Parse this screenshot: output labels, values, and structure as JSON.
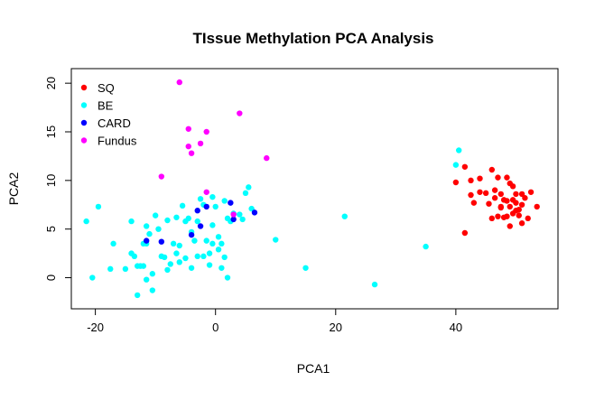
{
  "chart_data": {
    "type": "scatter",
    "title": "TIssue Methylation PCA Analysis",
    "xlabel": "PCA1",
    "ylabel": "PCA2",
    "xlim": [
      -24,
      57
    ],
    "ylim": [
      -3.2,
      21.5
    ],
    "x_ticks": [
      -20,
      0,
      20,
      40
    ],
    "y_ticks": [
      0,
      5,
      10,
      15,
      20
    ],
    "grid": false,
    "legend_position": "top-left",
    "series": [
      {
        "name": "SQ",
        "color": "#ff0000",
        "points": [
          [
            40,
            9.8
          ],
          [
            41.5,
            11.4
          ],
          [
            42.5,
            10
          ],
          [
            44,
            10.2
          ],
          [
            45,
            8.7
          ],
          [
            46,
            11.1
          ],
          [
            47,
            10.3
          ],
          [
            48.5,
            10.3
          ],
          [
            49,
            9.7
          ],
          [
            49.5,
            9.4
          ],
          [
            50,
            8.6
          ],
          [
            51,
            8.6
          ],
          [
            52.5,
            8.8
          ],
          [
            53.5,
            7.3
          ],
          [
            42.5,
            8.5
          ],
          [
            43,
            7.7
          ],
          [
            44,
            8.8
          ],
          [
            45.5,
            7.6
          ],
          [
            46.5,
            9
          ],
          [
            47.5,
            8.6
          ],
          [
            48,
            8
          ],
          [
            48.5,
            7.9
          ],
          [
            49,
            7.3
          ],
          [
            49.5,
            8
          ],
          [
            50,
            7.7
          ],
          [
            50.5,
            7
          ],
          [
            51,
            7.5
          ],
          [
            51.5,
            8.2
          ],
          [
            46,
            6.1
          ],
          [
            47,
            6.3
          ],
          [
            47.5,
            7.2
          ],
          [
            48.5,
            6.3
          ],
          [
            49,
            5.3
          ],
          [
            50,
            6.9
          ],
          [
            50.5,
            6.4
          ],
          [
            51,
            5.6
          ],
          [
            52,
            6.1
          ],
          [
            47.5,
            7.3
          ],
          [
            46.5,
            8.2
          ],
          [
            48,
            6.2
          ],
          [
            49.5,
            6.6
          ],
          [
            41.5,
            4.6
          ]
        ]
      },
      {
        "name": "BE",
        "color": "#00ffff",
        "points": [
          [
            -21.5,
            5.8
          ],
          [
            -20.5,
            0
          ],
          [
            -19.5,
            7.3
          ],
          [
            -17,
            3.5
          ],
          [
            -17.5,
            0.9
          ],
          [
            -15,
            0.9
          ],
          [
            -14,
            5.8
          ],
          [
            -13.5,
            2.2
          ],
          [
            -13,
            -1.8
          ],
          [
            -12.5,
            1.2
          ],
          [
            -12,
            1.2
          ],
          [
            -11.5,
            -0.2
          ],
          [
            -11.5,
            3.5
          ],
          [
            -11,
            4.5
          ],
          [
            -10.5,
            0.4
          ],
          [
            -10.5,
            -1.3
          ],
          [
            -12,
            3.5
          ],
          [
            -11.5,
            5.3
          ],
          [
            -10,
            6.4
          ],
          [
            -9.5,
            5
          ],
          [
            -9,
            2.2
          ],
          [
            -8.5,
            2.1
          ],
          [
            -8,
            0.8
          ],
          [
            -8,
            5.9
          ],
          [
            -7.5,
            1.4
          ],
          [
            -7,
            3.5
          ],
          [
            -6.5,
            2.5
          ],
          [
            -6,
            3.3
          ],
          [
            -6,
            1.6
          ],
          [
            -5.5,
            7.4
          ],
          [
            -5,
            5.8
          ],
          [
            -5,
            2
          ],
          [
            -4.5,
            6.1
          ],
          [
            -4,
            4.7
          ],
          [
            -4,
            1
          ],
          [
            -3.5,
            3.8
          ],
          [
            -3,
            2.2
          ],
          [
            -3,
            5.8
          ],
          [
            -2.5,
            8.1
          ],
          [
            -2,
            2.2
          ],
          [
            -1.5,
            3.8
          ],
          [
            -1,
            2.5
          ],
          [
            -1,
            1.3
          ],
          [
            -0.5,
            3.5
          ],
          [
            -0.5,
            5.4
          ],
          [
            0,
            7.3
          ],
          [
            0.5,
            4.2
          ],
          [
            0.5,
            2.9
          ],
          [
            1,
            1
          ],
          [
            1.5,
            2.1
          ],
          [
            1.5,
            7.9
          ],
          [
            1,
            3.5
          ],
          [
            2,
            6.1
          ],
          [
            2.5,
            5.8
          ],
          [
            3,
            6.6
          ],
          [
            4,
            6.5
          ],
          [
            4.5,
            6
          ],
          [
            5,
            8.7
          ],
          [
            5.5,
            9.3
          ],
          [
            6,
            7.1
          ],
          [
            -0.5,
            8.3
          ],
          [
            -2,
            7.5
          ],
          [
            -13,
            1.2
          ],
          [
            -14,
            2.5
          ],
          [
            2,
            0
          ],
          [
            10,
            3.9
          ],
          [
            15,
            1
          ],
          [
            21.5,
            6.3
          ],
          [
            26.5,
            -0.7
          ],
          [
            35,
            3.2
          ],
          [
            40,
            11.6
          ],
          [
            40.5,
            13.1
          ],
          [
            -6.5,
            6.2
          ]
        ]
      },
      {
        "name": "CARD",
        "color": "#0000ff",
        "points": [
          [
            -11.5,
            3.8
          ],
          [
            -9,
            3.7
          ],
          [
            -4,
            4.4
          ],
          [
            -3,
            6.9
          ],
          [
            -2.5,
            5.3
          ],
          [
            -1.5,
            7.3
          ],
          [
            2.5,
            7.7
          ],
          [
            3,
            6
          ],
          [
            6.5,
            6.7
          ]
        ]
      },
      {
        "name": "Fundus",
        "color": "#ff00ff",
        "points": [
          [
            -6,
            20.1
          ],
          [
            -4.5,
            15.3
          ],
          [
            -4.5,
            13.5
          ],
          [
            -4,
            12.8
          ],
          [
            -2.5,
            13.8
          ],
          [
            -1.5,
            15
          ],
          [
            4,
            16.9
          ],
          [
            -9,
            10.4
          ],
          [
            -1.5,
            8.8
          ],
          [
            3,
            6.5
          ],
          [
            8.5,
            12.3
          ]
        ]
      }
    ]
  }
}
